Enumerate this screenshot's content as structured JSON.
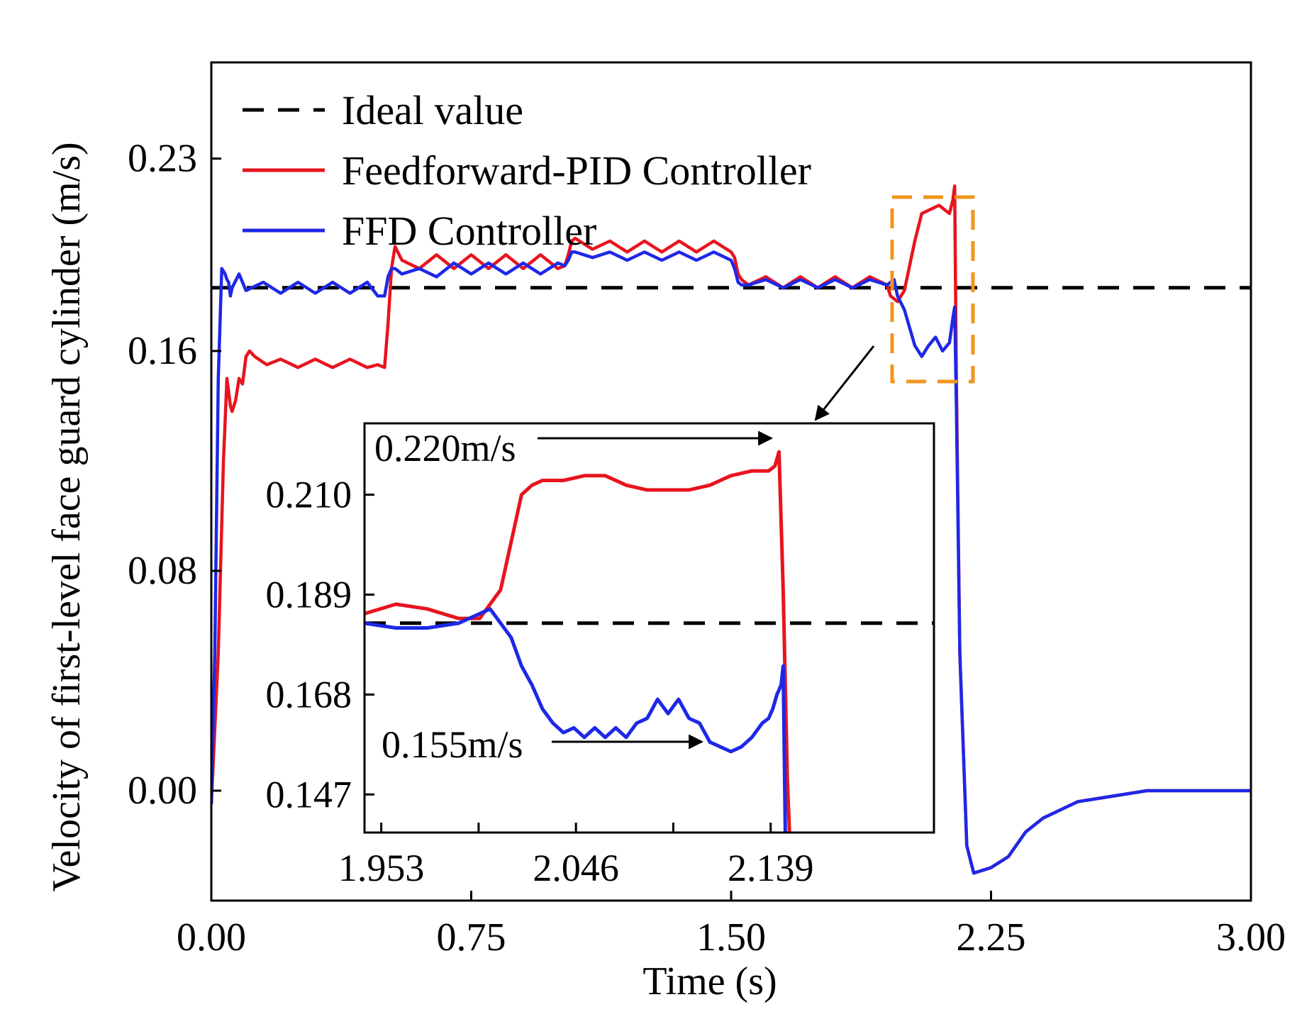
{
  "chart_data": [
    {
      "type": "line",
      "xlabel": "Time (s)",
      "ylabel": "Velocity of first-level face guard cylinder (m/s)",
      "xlim": [
        0.0,
        3.0
      ],
      "ylim": [
        -0.04,
        0.265
      ],
      "xticks": [
        "0.00",
        "0.75",
        "1.50",
        "2.25",
        "3.00"
      ],
      "xtick_values": [
        0.0,
        0.75,
        1.5,
        2.25,
        3.0
      ],
      "yticks": [
        "0.00",
        "0.08",
        "0.16",
        "0.23"
      ],
      "ytick_values": [
        0.0,
        0.08,
        0.16,
        0.23
      ],
      "grid": false,
      "legend_position": "top-left",
      "series": [
        {
          "name": "Ideal  value",
          "color": "#000000",
          "style": "dashed",
          "x": [
            0.0,
            3.0
          ],
          "y": [
            0.183,
            0.183
          ]
        },
        {
          "name": "Feedforward-PID  Controller",
          "color": "#e8141e",
          "style": "solid",
          "x": [
            0.0,
            0.02,
            0.035,
            0.045,
            0.055,
            0.06,
            0.07,
            0.08,
            0.09,
            0.1,
            0.11,
            0.125,
            0.16,
            0.2,
            0.25,
            0.3,
            0.35,
            0.4,
            0.45,
            0.48,
            0.5,
            0.51,
            0.52,
            0.53,
            0.55,
            0.6,
            0.65,
            0.7,
            0.75,
            0.8,
            0.85,
            0.9,
            0.95,
            1.0,
            1.02,
            1.03,
            1.04,
            1.05,
            1.1,
            1.15,
            1.2,
            1.25,
            1.3,
            1.35,
            1.4,
            1.45,
            1.5,
            1.51,
            1.52,
            1.53,
            1.55,
            1.6,
            1.65,
            1.7,
            1.75,
            1.8,
            1.85,
            1.9,
            1.95,
            1.96,
            1.98,
            2.0,
            2.03,
            2.05,
            2.1,
            2.13,
            2.14,
            2.145,
            2.15,
            2.16,
            2.18,
            2.2,
            2.25,
            2.3,
            2.35,
            2.4,
            2.5,
            2.7,
            2.9,
            3.0
          ],
          "y": [
            -0.005,
            0.05,
            0.12,
            0.15,
            0.14,
            0.138,
            0.142,
            0.15,
            0.148,
            0.158,
            0.16,
            0.158,
            0.155,
            0.157,
            0.154,
            0.157,
            0.154,
            0.157,
            0.154,
            0.155,
            0.154,
            0.17,
            0.19,
            0.198,
            0.193,
            0.19,
            0.195,
            0.19,
            0.195,
            0.19,
            0.195,
            0.19,
            0.195,
            0.19,
            0.191,
            0.195,
            0.2,
            0.201,
            0.197,
            0.2,
            0.196,
            0.2,
            0.196,
            0.2,
            0.196,
            0.2,
            0.196,
            0.194,
            0.188,
            0.186,
            0.184,
            0.187,
            0.183,
            0.187,
            0.183,
            0.187,
            0.183,
            0.187,
            0.184,
            0.18,
            0.178,
            0.182,
            0.2,
            0.21,
            0.213,
            0.21,
            0.215,
            0.22,
            0.15,
            0.05,
            -0.02,
            -0.03,
            -0.028,
            -0.024,
            -0.015,
            -0.01,
            -0.004,
            0.0,
            0.0,
            0.0
          ]
        },
        {
          "name": "FFD Controller",
          "color": "#1e28e6",
          "style": "solid",
          "x": [
            0.0,
            0.01,
            0.02,
            0.03,
            0.04,
            0.045,
            0.05,
            0.055,
            0.06,
            0.08,
            0.1,
            0.15,
            0.2,
            0.25,
            0.3,
            0.35,
            0.4,
            0.45,
            0.48,
            0.5,
            0.51,
            0.52,
            0.53,
            0.55,
            0.6,
            0.65,
            0.7,
            0.75,
            0.8,
            0.85,
            0.9,
            0.95,
            1.0,
            1.02,
            1.03,
            1.04,
            1.05,
            1.1,
            1.15,
            1.2,
            1.25,
            1.3,
            1.35,
            1.4,
            1.45,
            1.5,
            1.51,
            1.52,
            1.53,
            1.55,
            1.6,
            1.65,
            1.7,
            1.75,
            1.8,
            1.85,
            1.9,
            1.95,
            1.97,
            1.98,
            2.0,
            2.03,
            2.05,
            2.07,
            2.09,
            2.11,
            2.13,
            2.14,
            2.145,
            2.15,
            2.16,
            2.18,
            2.2,
            2.25,
            2.3,
            2.35,
            2.4,
            2.5,
            2.7,
            2.9,
            3.0
          ],
          "y": [
            -0.005,
            0.05,
            0.15,
            0.19,
            0.188,
            0.186,
            0.185,
            0.18,
            0.183,
            0.188,
            0.182,
            0.185,
            0.181,
            0.185,
            0.181,
            0.185,
            0.181,
            0.185,
            0.18,
            0.18,
            0.187,
            0.19,
            0.19,
            0.188,
            0.19,
            0.187,
            0.192,
            0.188,
            0.192,
            0.188,
            0.192,
            0.188,
            0.192,
            0.191,
            0.193,
            0.196,
            0.196,
            0.194,
            0.196,
            0.193,
            0.196,
            0.193,
            0.196,
            0.193,
            0.196,
            0.193,
            0.19,
            0.185,
            0.184,
            0.184,
            0.186,
            0.183,
            0.186,
            0.183,
            0.186,
            0.183,
            0.186,
            0.184,
            0.186,
            0.18,
            0.175,
            0.162,
            0.158,
            0.162,
            0.165,
            0.16,
            0.163,
            0.172,
            0.176,
            0.14,
            0.05,
            -0.02,
            -0.03,
            -0.028,
            -0.024,
            -0.015,
            -0.01,
            -0.004,
            0.0,
            0.0,
            0.0
          ]
        }
      ]
    },
    {
      "type": "line",
      "xlim": [
        1.945,
        2.217
      ],
      "ylim": [
        0.139,
        0.225
      ],
      "xticks": [
        "1.953",
        "2.046",
        "2.139"
      ],
      "xtick_values": [
        1.953,
        2.046,
        2.139
      ],
      "yticks": [
        "0.210",
        "0.189",
        "0.168",
        "0.147"
      ],
      "ytick_values": [
        0.21,
        0.189,
        0.168,
        0.147
      ],
      "grid": false,
      "annotations": [
        "0.220m/s",
        "0.155m/s"
      ],
      "series": [
        {
          "name": "Ideal  value",
          "color": "#000000",
          "style": "dashed",
          "x": [
            1.945,
            2.217
          ],
          "y": [
            0.183,
            0.183
          ]
        },
        {
          "name": "Feedforward-PID  Controller",
          "color": "#e8141e",
          "style": "solid",
          "x": [
            1.945,
            1.96,
            1.975,
            1.99,
            2.0,
            2.01,
            2.015,
            2.02,
            2.025,
            2.03,
            2.04,
            2.05,
            2.06,
            2.07,
            2.08,
            2.09,
            2.1,
            2.11,
            2.12,
            2.13,
            2.138,
            2.141,
            2.143,
            2.145,
            2.147,
            2.148
          ],
          "y": [
            0.185,
            0.187,
            0.186,
            0.184,
            0.184,
            0.19,
            0.2,
            0.21,
            0.212,
            0.213,
            0.213,
            0.214,
            0.214,
            0.212,
            0.211,
            0.211,
            0.211,
            0.212,
            0.214,
            0.215,
            0.215,
            0.216,
            0.219,
            0.19,
            0.15,
            0.139
          ]
        },
        {
          "name": "FFD Controller",
          "color": "#1e28e6",
          "style": "solid",
          "x": [
            1.945,
            1.96,
            1.975,
            1.99,
            2.0,
            2.005,
            2.01,
            2.015,
            2.02,
            2.025,
            2.03,
            2.035,
            2.04,
            2.045,
            2.05,
            2.055,
            2.06,
            2.065,
            2.07,
            2.075,
            2.08,
            2.085,
            2.09,
            2.095,
            2.1,
            2.105,
            2.11,
            2.115,
            2.12,
            2.125,
            2.13,
            2.135,
            2.138,
            2.14,
            2.142,
            2.144,
            2.145,
            2.146
          ],
          "y": [
            0.183,
            0.182,
            0.182,
            0.183,
            0.185,
            0.186,
            0.183,
            0.18,
            0.174,
            0.17,
            0.165,
            0.162,
            0.16,
            0.161,
            0.159,
            0.161,
            0.159,
            0.161,
            0.159,
            0.162,
            0.163,
            0.167,
            0.164,
            0.167,
            0.163,
            0.162,
            0.158,
            0.157,
            0.156,
            0.157,
            0.159,
            0.162,
            0.163,
            0.165,
            0.168,
            0.17,
            0.174,
            0.139
          ]
        }
      ]
    }
  ]
}
